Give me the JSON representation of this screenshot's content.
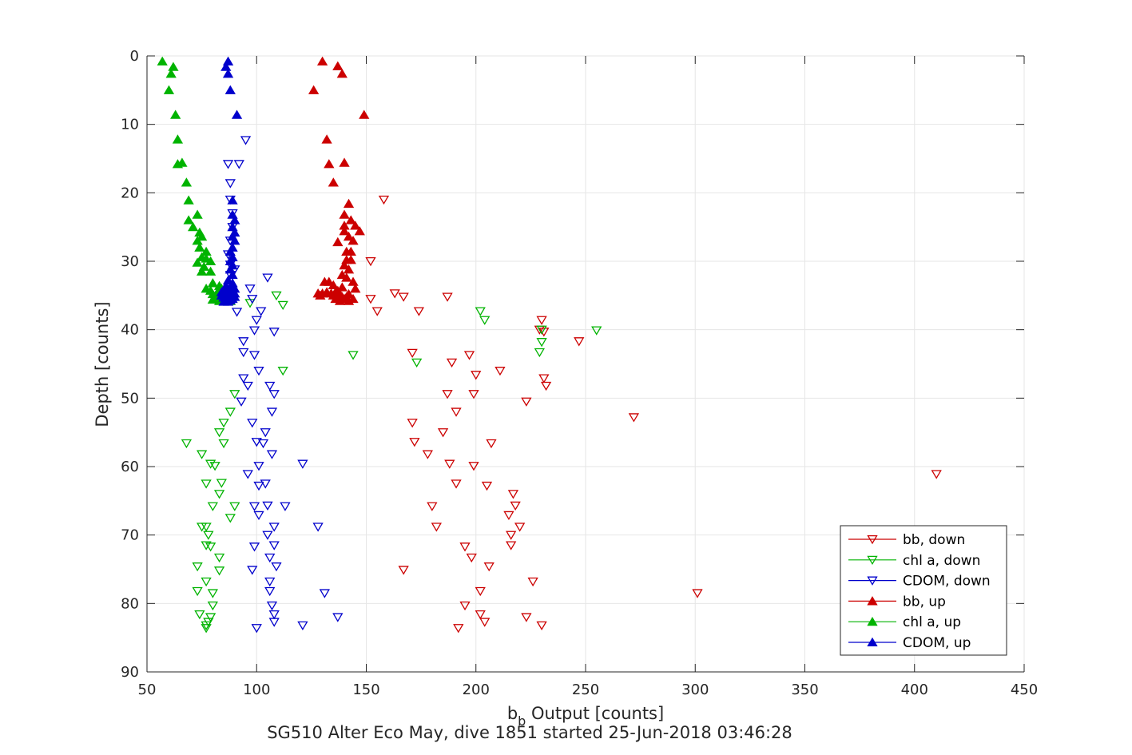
{
  "chart_data": {
    "type": "scatter",
    "title": "",
    "xlabel": "b",
    "xlabel_subscript": "b",
    "xlabel_rest": " Output [counts]",
    "ylabel": "Depth [counts]",
    "caption": "SG510 Alter Eco May, dive 1851 started 25-Jun-2018 03:46:28",
    "xlim": [
      50,
      450
    ],
    "ylim": [
      0,
      90
    ],
    "y_reversed": true,
    "grid": true,
    "legend_position": "bottom-right",
    "xticks": [
      "50",
      "100",
      "150",
      "200",
      "250",
      "300",
      "350",
      "400",
      "450"
    ],
    "yticks": [
      "0",
      "10",
      "20",
      "30",
      "40",
      "50",
      "60",
      "70",
      "80",
      "90"
    ],
    "series": [
      {
        "name": "bb, down",
        "color": "#cc0000",
        "marker": "triangle-down",
        "points": [
          [
            158,
            21
          ],
          [
            152,
            30
          ],
          [
            163,
            34.7
          ],
          [
            167,
            35.2
          ],
          [
            187,
            35.2
          ],
          [
            152,
            35.5
          ],
          [
            155,
            37.3
          ],
          [
            174,
            37.3
          ],
          [
            230,
            38.6
          ],
          [
            229,
            40
          ],
          [
            231,
            40.3
          ],
          [
            247,
            41.7
          ],
          [
            171,
            43.4
          ],
          [
            197,
            43.7
          ],
          [
            189,
            44.8
          ],
          [
            211,
            46
          ],
          [
            200,
            46.6
          ],
          [
            231,
            47.1
          ],
          [
            232,
            48.2
          ],
          [
            187,
            49.4
          ],
          [
            199,
            49.4
          ],
          [
            223,
            50.5
          ],
          [
            191,
            52
          ],
          [
            272,
            52.8
          ],
          [
            171,
            53.6
          ],
          [
            185,
            55
          ],
          [
            172,
            56.4
          ],
          [
            207,
            56.6
          ],
          [
            178,
            58.2
          ],
          [
            188,
            59.6
          ],
          [
            199,
            59.9
          ],
          [
            410,
            61.1
          ],
          [
            191,
            62.5
          ],
          [
            205,
            62.8
          ],
          [
            217,
            64
          ],
          [
            218,
            65.7
          ],
          [
            180,
            65.8
          ],
          [
            215,
            67.1
          ],
          [
            220,
            68.8
          ],
          [
            182,
            68.8
          ],
          [
            216,
            70
          ],
          [
            195,
            71.7
          ],
          [
            216,
            71.5
          ],
          [
            198,
            73.3
          ],
          [
            206,
            74.6
          ],
          [
            167,
            75.1
          ],
          [
            226,
            76.8
          ],
          [
            202,
            78.2
          ],
          [
            301,
            78.5
          ],
          [
            195,
            80.3
          ],
          [
            202,
            81.6
          ],
          [
            223,
            82
          ],
          [
            204,
            82.7
          ],
          [
            230,
            83.2
          ],
          [
            192,
            83.6
          ]
        ]
      },
      {
        "name": "chl a, down",
        "color": "#00b300",
        "marker": "triangle-down",
        "points": [
          [
            109,
            35
          ],
          [
            112,
            36.4
          ],
          [
            97,
            36.1
          ],
          [
            202,
            37.3
          ],
          [
            204,
            38.6
          ],
          [
            255,
            40.1
          ],
          [
            230,
            40
          ],
          [
            230,
            41.8
          ],
          [
            229,
            43.3
          ],
          [
            144,
            43.7
          ],
          [
            173,
            44.8
          ],
          [
            112,
            46
          ],
          [
            90,
            49.4
          ],
          [
            88,
            52
          ],
          [
            85,
            53.6
          ],
          [
            83,
            55
          ],
          [
            85,
            56.6
          ],
          [
            68,
            56.6
          ],
          [
            75,
            58.2
          ],
          [
            79,
            59.6
          ],
          [
            81,
            59.9
          ],
          [
            84,
            62.4
          ],
          [
            77,
            62.5
          ],
          [
            83,
            64
          ],
          [
            80,
            65.8
          ],
          [
            90,
            65.8
          ],
          [
            88,
            67.5
          ],
          [
            75,
            68.8
          ],
          [
            77,
            68.8
          ],
          [
            78,
            70
          ],
          [
            77,
            71.5
          ],
          [
            79,
            71.7
          ],
          [
            83,
            73.3
          ],
          [
            73,
            74.6
          ],
          [
            83,
            75.2
          ],
          [
            77,
            76.8
          ],
          [
            73,
            78.2
          ],
          [
            80,
            78.5
          ],
          [
            80,
            80.3
          ],
          [
            74,
            81.6
          ],
          [
            79,
            82
          ],
          [
            78,
            82.7
          ],
          [
            77,
            83.2
          ],
          [
            77,
            83.6
          ]
        ]
      },
      {
        "name": "CDOM, down",
        "color": "#0000cc",
        "marker": "triangle-down",
        "points": [
          [
            95,
            12.3
          ],
          [
            87,
            15.8
          ],
          [
            92,
            15.8
          ],
          [
            88,
            18.6
          ],
          [
            88,
            21
          ],
          [
            89,
            23
          ],
          [
            89,
            25
          ],
          [
            88,
            27
          ],
          [
            87,
            29
          ],
          [
            88,
            30.5
          ],
          [
            90,
            31.2
          ],
          [
            105,
            32.4
          ],
          [
            88,
            32
          ],
          [
            97,
            34
          ],
          [
            98,
            35.5
          ],
          [
            91,
            37.4
          ],
          [
            102,
            37.3
          ],
          [
            100,
            38.6
          ],
          [
            99,
            40.1
          ],
          [
            108,
            40.3
          ],
          [
            94,
            41.7
          ],
          [
            94,
            43.3
          ],
          [
            99,
            43.7
          ],
          [
            101,
            46
          ],
          [
            94,
            47.1
          ],
          [
            96,
            48.2
          ],
          [
            106,
            48.2
          ],
          [
            108,
            49.4
          ],
          [
            93,
            50.5
          ],
          [
            107,
            52
          ],
          [
            98,
            53.6
          ],
          [
            104,
            55
          ],
          [
            100,
            56.4
          ],
          [
            103,
            56.6
          ],
          [
            107,
            58.2
          ],
          [
            121,
            59.6
          ],
          [
            101,
            59.9
          ],
          [
            96,
            61.1
          ],
          [
            101,
            62.8
          ],
          [
            104,
            62.5
          ],
          [
            99,
            65.8
          ],
          [
            113,
            65.8
          ],
          [
            105,
            65.7
          ],
          [
            101,
            67.1
          ],
          [
            108,
            68.8
          ],
          [
            128,
            68.8
          ],
          [
            105,
            70
          ],
          [
            99,
            71.7
          ],
          [
            108,
            71.5
          ],
          [
            106,
            73.3
          ],
          [
            109,
            74.6
          ],
          [
            98,
            75.1
          ],
          [
            106,
            76.8
          ],
          [
            131,
            78.5
          ],
          [
            106,
            78.2
          ],
          [
            107,
            80.3
          ],
          [
            108,
            81.6
          ],
          [
            137,
            82
          ],
          [
            108,
            82.7
          ],
          [
            121,
            83.2
          ],
          [
            100,
            83.6
          ]
        ]
      },
      {
        "name": "bb, up",
        "color": "#cc0000",
        "marker": "triangle-up",
        "points": [
          [
            130,
            0.8
          ],
          [
            137,
            1.5
          ],
          [
            139,
            2.6
          ],
          [
            126,
            5
          ],
          [
            149,
            8.6
          ],
          [
            132,
            12.2
          ],
          [
            133,
            15.8
          ],
          [
            140,
            15.6
          ],
          [
            135,
            18.5
          ],
          [
            142,
            21.6
          ],
          [
            140,
            23.2
          ],
          [
            143,
            24
          ],
          [
            140,
            24.8
          ],
          [
            145,
            24.8
          ],
          [
            140,
            25.6
          ],
          [
            147,
            25.6
          ],
          [
            142,
            26.4
          ],
          [
            144,
            27
          ],
          [
            137,
            27.2
          ],
          [
            141,
            28.6
          ],
          [
            143,
            28.6
          ],
          [
            141,
            29.8
          ],
          [
            143,
            29.8
          ],
          [
            140,
            30.6
          ],
          [
            142,
            31.2
          ],
          [
            139,
            32
          ],
          [
            141,
            32.4
          ],
          [
            144,
            33
          ],
          [
            131,
            33
          ],
          [
            133,
            33
          ],
          [
            135,
            33.5
          ],
          [
            139,
            33.8
          ],
          [
            145,
            34
          ],
          [
            137,
            34.3
          ],
          [
            132,
            34.5
          ],
          [
            136,
            34.5
          ],
          [
            128,
            34.7
          ],
          [
            130,
            34.7
          ],
          [
            134,
            34.7
          ],
          [
            138,
            34.8
          ],
          [
            142,
            34.8
          ],
          [
            129,
            35
          ],
          [
            135,
            35
          ],
          [
            137,
            35
          ],
          [
            139,
            35.2
          ],
          [
            141,
            35.2
          ],
          [
            136,
            35.5
          ],
          [
            140,
            35.5
          ],
          [
            144,
            35.5
          ],
          [
            138,
            35.8
          ],
          [
            142,
            35.8
          ]
        ]
      },
      {
        "name": "chl a, up",
        "color": "#00b300",
        "marker": "triangle-up",
        "points": [
          [
            57,
            0.8
          ],
          [
            62,
            1.6
          ],
          [
            61,
            2.6
          ],
          [
            60,
            5
          ],
          [
            63,
            8.6
          ],
          [
            64,
            12.2
          ],
          [
            64,
            15.8
          ],
          [
            66,
            15.6
          ],
          [
            68,
            18.5
          ],
          [
            69,
            21.1
          ],
          [
            73,
            23.2
          ],
          [
            69,
            24
          ],
          [
            71,
            25
          ],
          [
            74,
            25.8
          ],
          [
            75,
            26.4
          ],
          [
            73,
            27
          ],
          [
            74,
            28
          ],
          [
            77,
            28.6
          ],
          [
            75,
            29.4
          ],
          [
            77,
            29.6
          ],
          [
            79,
            30
          ],
          [
            73,
            30.2
          ],
          [
            76,
            30.8
          ],
          [
            75,
            31.5
          ],
          [
            79,
            31.5
          ],
          [
            80,
            33.2
          ],
          [
            83,
            33.6
          ],
          [
            77,
            34
          ],
          [
            84,
            34
          ],
          [
            79,
            34.3
          ],
          [
            86,
            34.5
          ],
          [
            82,
            34.6
          ],
          [
            88,
            34.7
          ],
          [
            80,
            34.8
          ],
          [
            83,
            35
          ],
          [
            86,
            35
          ],
          [
            89,
            35
          ],
          [
            82,
            35.2
          ],
          [
            84,
            35.4
          ],
          [
            87,
            35.4
          ],
          [
            80,
            35.6
          ],
          [
            85,
            35.6
          ],
          [
            83,
            35.8
          ],
          [
            88,
            35.8
          ]
        ]
      },
      {
        "name": "CDOM, up",
        "color": "#0000cc",
        "marker": "triangle-up",
        "points": [
          [
            87,
            0.8
          ],
          [
            86,
            1.6
          ],
          [
            87,
            2.6
          ],
          [
            88,
            5
          ],
          [
            91,
            8.6
          ],
          [
            89,
            21.1
          ],
          [
            89,
            23.2
          ],
          [
            90,
            24
          ],
          [
            89,
            25
          ],
          [
            90,
            25.8
          ],
          [
            89,
            26.4
          ],
          [
            90,
            27
          ],
          [
            89,
            28
          ],
          [
            88,
            28.6
          ],
          [
            89,
            29.4
          ],
          [
            88,
            30
          ],
          [
            89,
            30.6
          ],
          [
            88,
            31.2
          ],
          [
            89,
            32
          ],
          [
            87,
            32.8
          ],
          [
            89,
            33.2
          ],
          [
            86,
            33.6
          ],
          [
            88,
            33.8
          ],
          [
            90,
            34
          ],
          [
            85,
            34.2
          ],
          [
            87,
            34.3
          ],
          [
            89,
            34.4
          ],
          [
            84,
            34.5
          ],
          [
            86,
            34.6
          ],
          [
            88,
            34.7
          ],
          [
            90,
            34.7
          ],
          [
            85,
            34.8
          ],
          [
            87,
            34.9
          ],
          [
            89,
            35
          ],
          [
            84,
            35
          ],
          [
            86,
            35.1
          ],
          [
            88,
            35.2
          ],
          [
            90,
            35.2
          ],
          [
            85,
            35.3
          ],
          [
            87,
            35.4
          ],
          [
            89,
            35.5
          ],
          [
            86,
            35.6
          ],
          [
            88,
            35.7
          ],
          [
            87,
            35.9
          ],
          [
            85,
            35.9
          ]
        ]
      }
    ]
  }
}
